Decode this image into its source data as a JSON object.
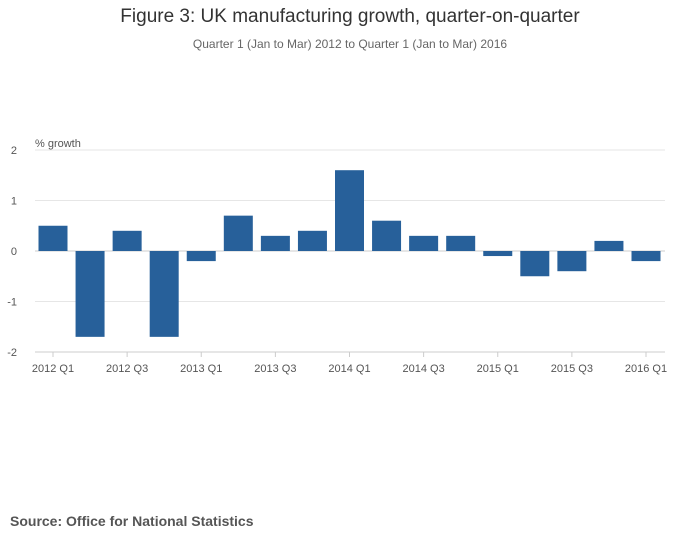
{
  "chart_data": {
    "type": "bar",
    "title": "Figure 3: UK manufacturing growth, quarter-on-quarter",
    "subtitle": "Quarter 1 (Jan to Mar) 2012 to Quarter 1 (Jan to Mar) 2016",
    "ylabel": "% growth",
    "xlabel": "",
    "ylim": [
      -2,
      2
    ],
    "yticks": [
      "2",
      "1",
      "0",
      "-1",
      "-2"
    ],
    "ytick_values": [
      2,
      1,
      0,
      -1,
      -2
    ],
    "categories": [
      "2012 Q1",
      "2012 Q2",
      "2012 Q3",
      "2012 Q4",
      "2013 Q1",
      "2013 Q2",
      "2013 Q3",
      "2013 Q4",
      "2014 Q1",
      "2014 Q2",
      "2014 Q3",
      "2014 Q4",
      "2015 Q1",
      "2015 Q2",
      "2015 Q3",
      "2015 Q4",
      "2016 Q1"
    ],
    "values": [
      0.5,
      -1.7,
      0.4,
      -1.7,
      -0.2,
      0.7,
      0.3,
      0.4,
      1.6,
      0.6,
      0.3,
      0.3,
      -0.1,
      -0.5,
      -0.4,
      0.2,
      -0.2
    ],
    "xtick_labels": [
      "2012 Q1",
      "2012 Q3",
      "2013 Q1",
      "2013 Q3",
      "2014 Q1",
      "2014 Q3",
      "2015 Q1",
      "2015 Q3",
      "2016 Q1"
    ],
    "xtick_indices": [
      0,
      2,
      4,
      6,
      8,
      10,
      12,
      14,
      16
    ],
    "bar_color": "#27609a",
    "gridlines": true
  },
  "source": "Source: Office for National Statistics"
}
